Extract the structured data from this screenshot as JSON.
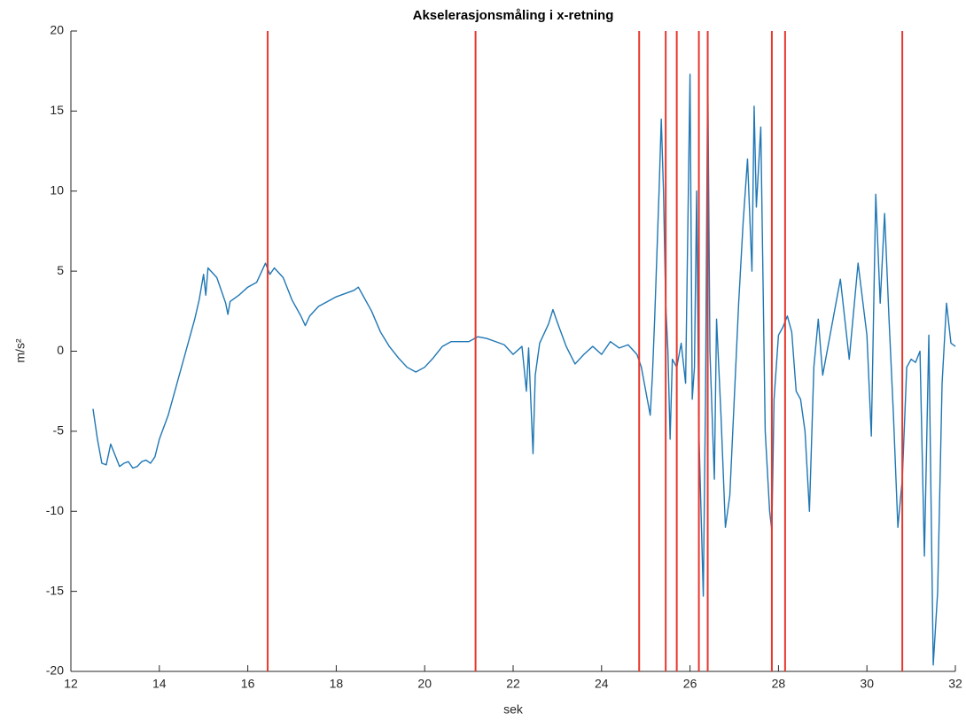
{
  "chart_data": {
    "type": "line",
    "title": "Akselerasjonsmåling i x-retning",
    "xlabel": "sek",
    "ylabel": "m/s²",
    "xlim": [
      12,
      32
    ],
    "xticks": [
      12,
      14,
      16,
      18,
      20,
      22,
      24,
      26,
      28,
      30,
      32
    ],
    "ylim": [
      -20,
      20
    ],
    "yticks": [
      -20,
      -15,
      -10,
      -5,
      0,
      5,
      10,
      15,
      20
    ],
    "grid": false,
    "vlines": {
      "color": "#e8382d",
      "x": [
        16.45,
        21.15,
        24.85,
        25.45,
        25.7,
        26.2,
        26.4,
        27.85,
        28.15,
        30.8
      ]
    },
    "series": [
      {
        "color": "#1f77b4",
        "x": [
          12.5,
          12.6,
          12.7,
          12.8,
          12.9,
          13.0,
          13.1,
          13.2,
          13.3,
          13.4,
          13.5,
          13.6,
          13.7,
          13.8,
          13.9,
          14.0,
          14.2,
          14.4,
          14.6,
          14.8,
          14.9,
          15.0,
          15.05,
          15.1,
          15.3,
          15.5,
          15.55,
          15.6,
          15.8,
          16.0,
          16.2,
          16.4,
          16.5,
          16.6,
          16.8,
          17.0,
          17.2,
          17.3,
          17.4,
          17.6,
          17.8,
          18.0,
          18.2,
          18.4,
          18.5,
          18.6,
          18.8,
          19.0,
          19.2,
          19.4,
          19.6,
          19.8,
          20.0,
          20.2,
          20.4,
          20.6,
          21.0,
          21.2,
          21.4,
          21.6,
          21.8,
          22.0,
          22.2,
          22.3,
          22.35,
          22.45,
          22.5,
          22.6,
          22.8,
          22.9,
          23.0,
          23.2,
          23.4,
          23.6,
          23.8,
          24.0,
          24.2,
          24.4,
          24.6,
          24.8,
          24.9,
          25.0,
          25.1,
          25.15,
          25.2,
          25.3,
          25.35,
          25.4,
          25.45,
          25.5,
          25.55,
          25.6,
          25.7,
          25.8,
          25.9,
          26.0,
          26.05,
          26.1,
          26.15,
          26.2,
          26.3,
          26.35,
          26.4,
          26.45,
          26.55,
          26.6,
          26.7,
          26.8,
          26.9,
          27.0,
          27.1,
          27.2,
          27.3,
          27.4,
          27.45,
          27.5,
          27.6,
          27.7,
          27.8,
          27.85,
          27.9,
          28.0,
          28.1,
          28.2,
          28.3,
          28.4,
          28.5,
          28.6,
          28.7,
          28.8,
          28.9,
          29.0,
          29.2,
          29.4,
          29.6,
          29.8,
          30.0,
          30.1,
          30.2,
          30.3,
          30.4,
          30.5,
          30.6,
          30.7,
          30.8,
          30.9,
          31.0,
          31.1,
          31.2,
          31.3,
          31.4,
          31.5,
          31.6,
          31.7,
          31.8,
          31.9,
          32.0
        ],
        "values": [
          -3.6,
          -5.5,
          -7,
          -7.1,
          -5.8,
          -6.5,
          -7.2,
          -7,
          -6.9,
          -7.3,
          -7.2,
          -6.9,
          -6.8,
          -7,
          -6.6,
          -5.5,
          -4,
          -2,
          0,
          2,
          3.2,
          4.8,
          3.5,
          5.2,
          4.6,
          3,
          2.3,
          3.1,
          3.5,
          4,
          4.3,
          5.5,
          4.8,
          5.2,
          4.6,
          3.2,
          2.2,
          1.6,
          2.2,
          2.8,
          3.1,
          3.4,
          3.6,
          3.8,
          4,
          3.5,
          2.5,
          1.2,
          0.3,
          -0.4,
          -1,
          -1.3,
          -1,
          -0.4,
          0.3,
          0.6,
          0.6,
          0.9,
          0.8,
          0.6,
          0.4,
          -0.2,
          0.3,
          -2.5,
          0.2,
          -6.4,
          -1.5,
          0.5,
          1.7,
          2.6,
          1.8,
          0.3,
          -0.8,
          -0.2,
          0.3,
          -0.2,
          0.6,
          0.2,
          0.4,
          -0.2,
          -1,
          -2.5,
          -4,
          -1.5,
          2,
          10,
          14.5,
          10,
          3,
          0,
          -5.5,
          -0.5,
          -1,
          0.5,
          -2,
          17.3,
          -3,
          -1,
          10,
          -5,
          -15.3,
          -3,
          17.7,
          0,
          -8,
          2,
          -4,
          -11,
          -9,
          -3,
          3,
          8,
          12,
          5,
          15.3,
          9,
          14,
          -5,
          -10,
          -11.2,
          -3,
          1,
          1.5,
          2.2,
          1.2,
          -2.5,
          -3,
          -5,
          -10,
          -1,
          2,
          -1.5,
          1.5,
          4.5,
          -0.5,
          5.5,
          1,
          -5.3,
          9.8,
          3,
          8.6,
          2,
          -4,
          -11,
          -8,
          -1,
          -0.5,
          -0.7,
          0,
          -12.8,
          1,
          -19.6,
          -15,
          -2,
          3,
          0.5,
          0.3
        ]
      }
    ]
  }
}
